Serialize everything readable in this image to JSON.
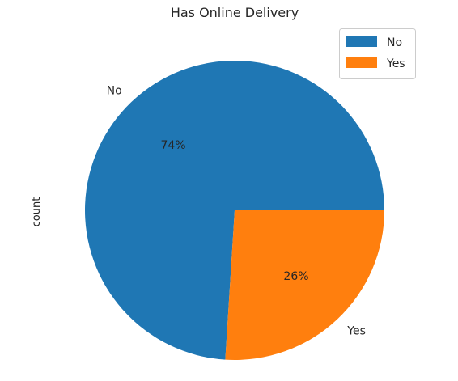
{
  "chart_data": {
    "type": "pie",
    "title": "Has Online Delivery",
    "ylabel": "count",
    "categories": [
      "No",
      "Yes"
    ],
    "percentages": [
      74,
      26
    ],
    "slice_labels": [
      "No",
      "Yes"
    ],
    "pct_labels": [
      "74%",
      "26%"
    ],
    "colors": [
      "#1f77b4",
      "#ff7f0e"
    ],
    "start_angle_deg": 0,
    "direction": "counterclockwise",
    "legend": {
      "placement": "top-right",
      "entries": [
        "No",
        "Yes"
      ]
    }
  }
}
